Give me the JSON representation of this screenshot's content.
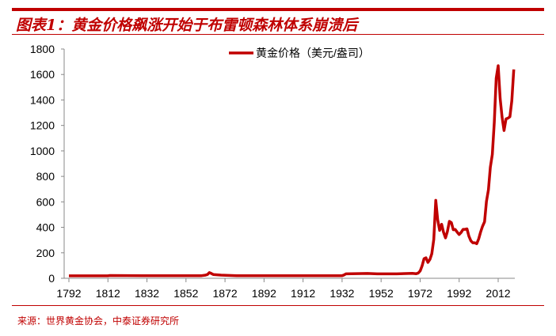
{
  "title": "图表1：黄金价格飙涨开始于布雷顿森林体系崩溃后",
  "source": "来源：世界黄金协会，中泰证券研究所",
  "colors": {
    "accent": "#c00000",
    "line": "#c00000"
  },
  "chart_data": {
    "type": "line",
    "title": "",
    "xlabel": "",
    "ylabel": "",
    "xlim": [
      1792,
      2020
    ],
    "ylim": [
      0,
      1800
    ],
    "yticks": [
      0,
      200,
      400,
      600,
      800,
      1000,
      1200,
      1400,
      1600,
      1800
    ],
    "xticks": [
      1792,
      1812,
      1832,
      1852,
      1872,
      1892,
      1912,
      1932,
      1952,
      1972,
      1992,
      2012
    ],
    "legend": "top-center",
    "grid": false,
    "series": [
      {
        "name": "黄金价格（美元/盎司）",
        "x": [
          1792,
          1812,
          1813,
          1830,
          1860,
          1862,
          1863,
          1864,
          1865,
          1866,
          1870,
          1878,
          1900,
          1932,
          1933,
          1934,
          1945,
          1950,
          1960,
          1968,
          1970,
          1971,
          1972,
          1973,
          1974,
          1975,
          1976,
          1977,
          1978,
          1979,
          1980,
          1981,
          1982,
          1983,
          1984,
          1985,
          1986,
          1987,
          1988,
          1989,
          1990,
          1991,
          1992,
          1993,
          1994,
          1995,
          1996,
          1997,
          1998,
          1999,
          2000,
          2001,
          2002,
          2003,
          2004,
          2005,
          2006,
          2007,
          2008,
          2009,
          2010,
          2011,
          2012,
          2013,
          2014,
          2015,
          2016,
          2017,
          2018,
          2019,
          2020
        ],
        "y": [
          19.4,
          19.4,
          22,
          20.7,
          20.7,
          25,
          30,
          45,
          38,
          30,
          25,
          20.7,
          20.7,
          20.7,
          26,
          35,
          38,
          35,
          35,
          39,
          36,
          41,
          58,
          97,
          154,
          161,
          125,
          148,
          193,
          306,
          612,
          460,
          376,
          424,
          361,
          317,
          368,
          447,
          437,
          381,
          383,
          362,
          344,
          360,
          384,
          384,
          388,
          331,
          294,
          279,
          279,
          271,
          310,
          363,
          409,
          444,
          604,
          695,
          872,
          972,
          1225,
          1571,
          1669,
          1411,
          1266,
          1160,
          1251,
          1257,
          1268,
          1393,
          1640
        ]
      }
    ]
  }
}
